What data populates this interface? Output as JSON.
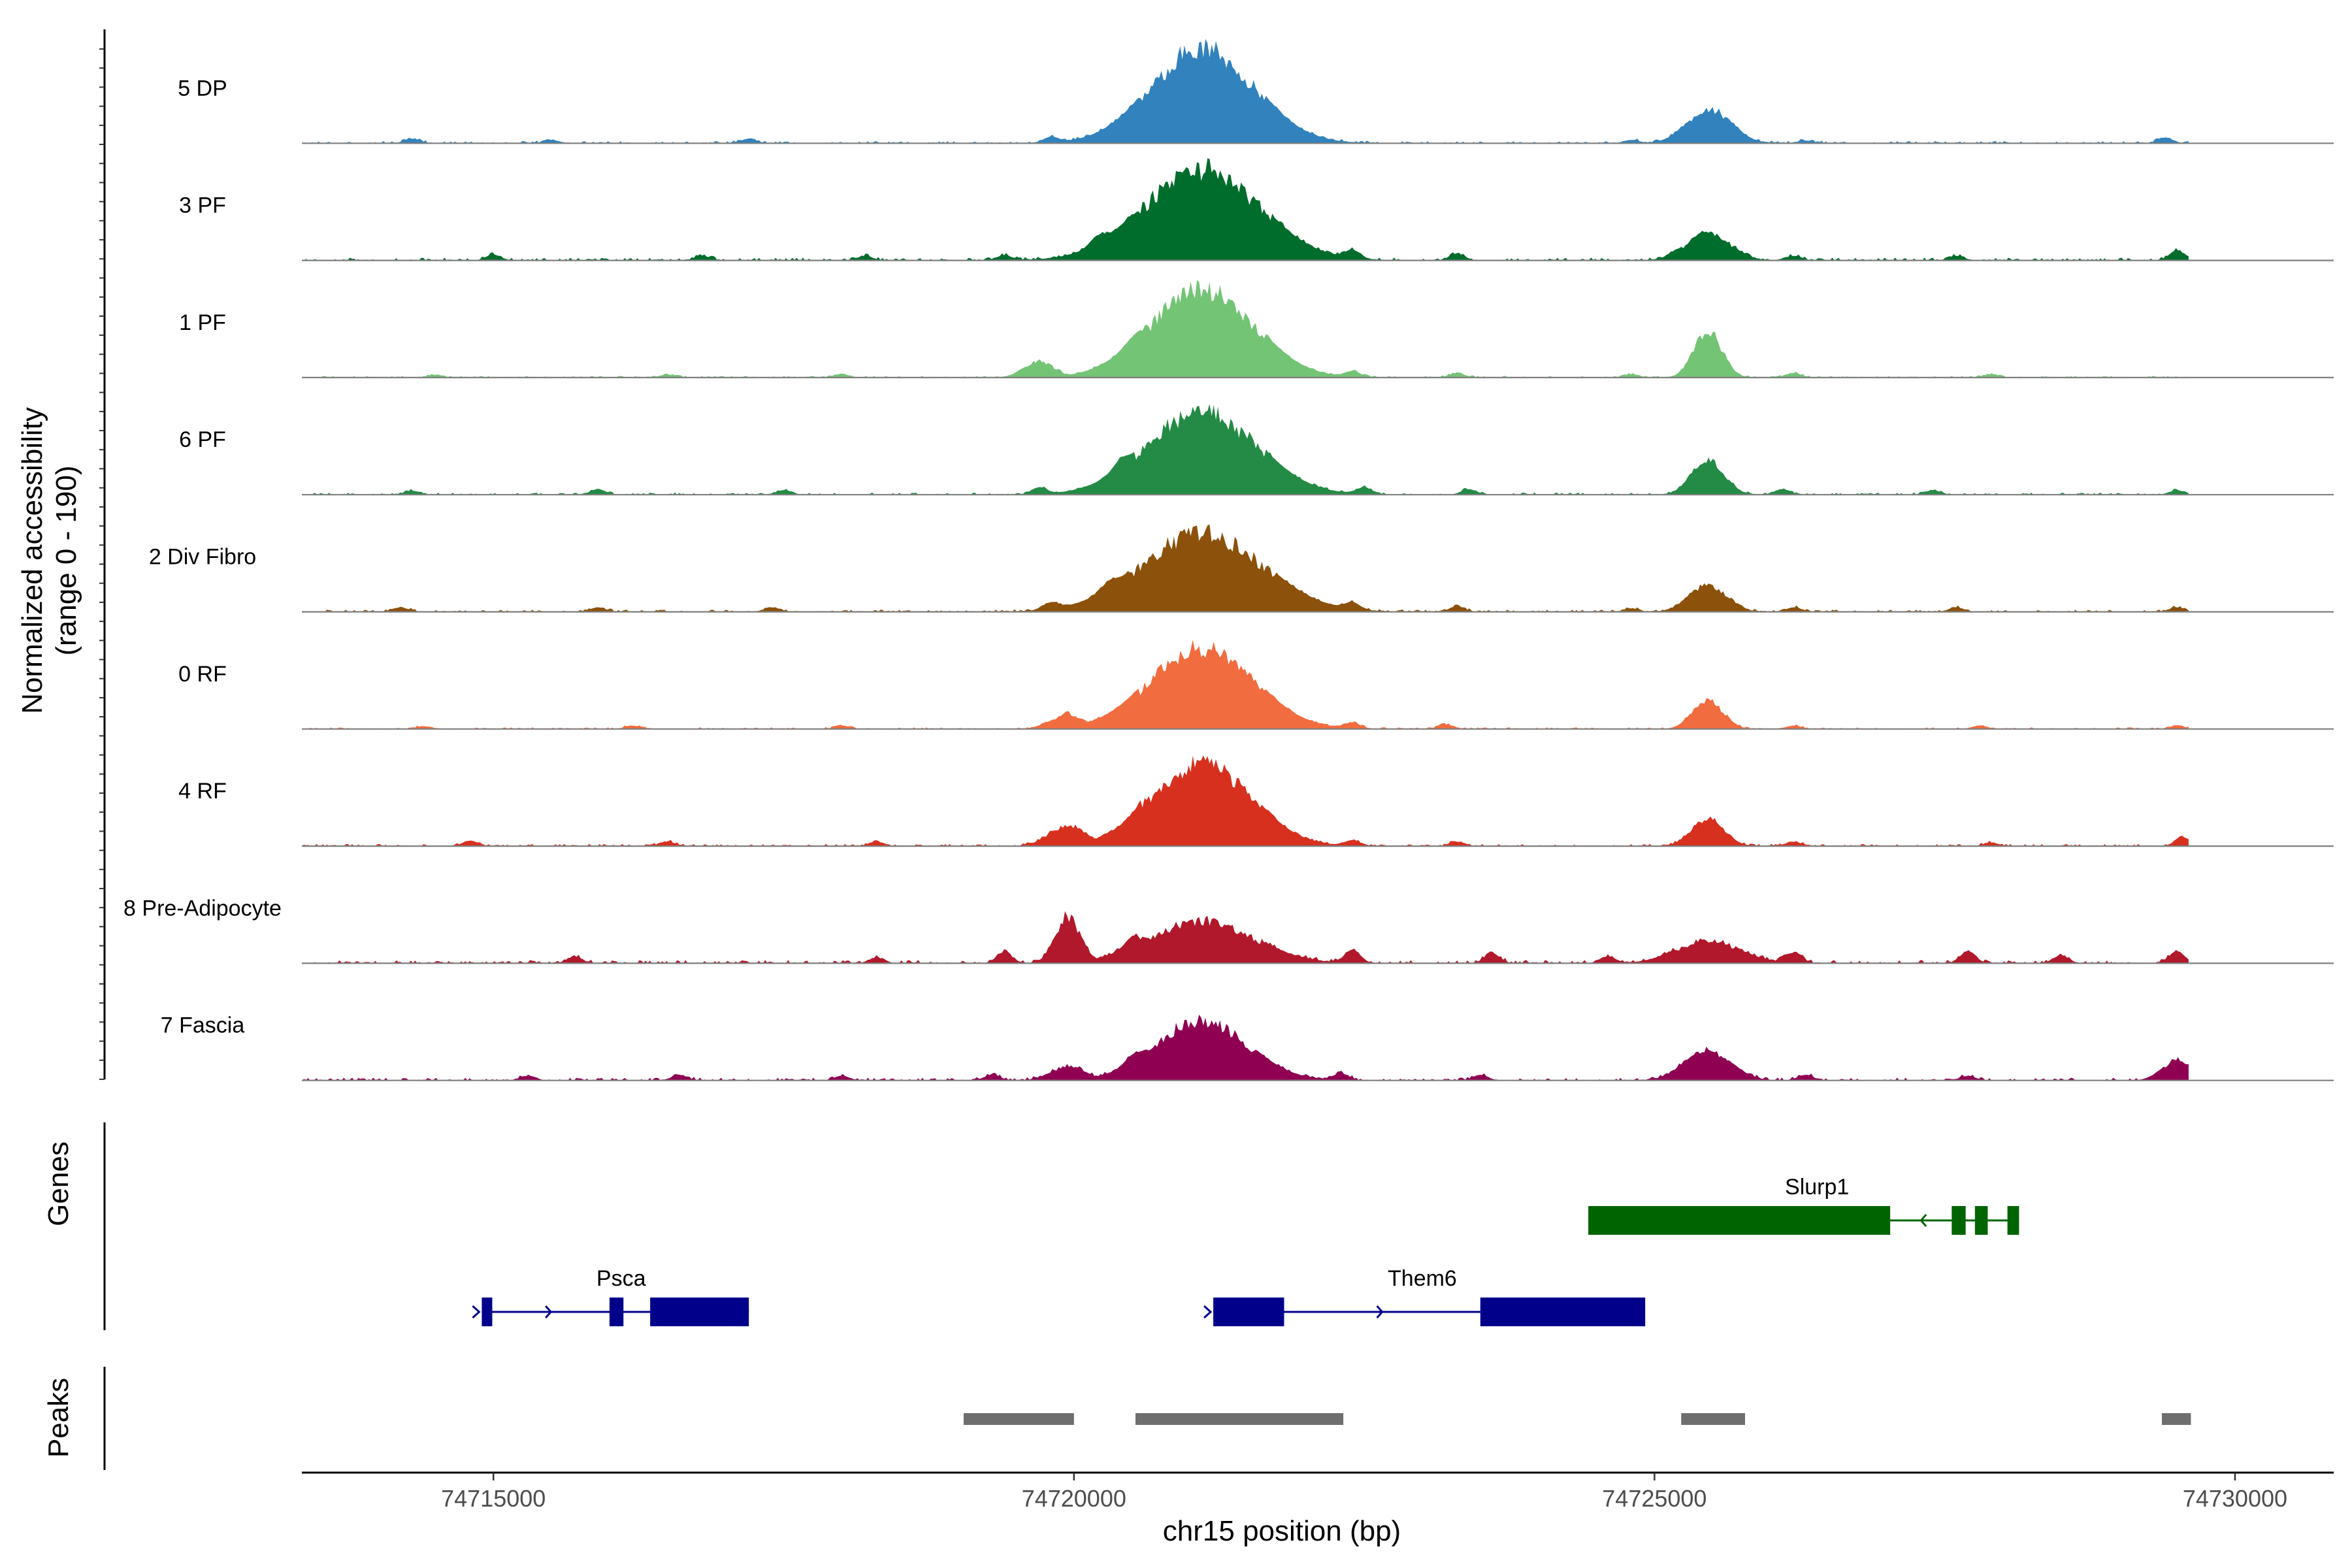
{
  "chart_data": {
    "type": "coverage-track",
    "chromosome": "chr15",
    "xlabel": "chr15 position (bp)",
    "ylabel_line1": "Normalized accessibility",
    "ylabel_line2": "(range 0 - 190)",
    "y_range": [
      0,
      190
    ],
    "x_range": [
      74713350,
      74730850
    ],
    "data_x_range": [
      74713350,
      74729600
    ],
    "x_ticks": [
      74715000,
      74720000,
      74725000,
      74730000
    ],
    "x_tick_labels": [
      "74715000",
      "74720000",
      "74725000",
      "74730000"
    ],
    "tracks": [
      {
        "name": "5 DP",
        "color": "#3182bd",
        "peaks": [
          [
            74721110,
            190,
            900
          ],
          [
            74725470,
            70,
            380
          ]
        ],
        "bumps": [
          [
            74714300,
            8
          ],
          [
            74715500,
            6
          ],
          [
            74717200,
            8
          ],
          [
            74719800,
            10
          ],
          [
            74720900,
            7
          ],
          [
            74724800,
            6
          ],
          [
            74726300,
            5
          ],
          [
            74729400,
            10
          ]
        ],
        "noise": 4
      },
      {
        "name": "3 PF",
        "color": "#006d2c",
        "peaks": [
          [
            74721100,
            185,
            1000
          ],
          [
            74725460,
            55,
            380
          ]
        ],
        "bumps": [
          [
            74715000,
            10
          ],
          [
            74716800,
            8
          ],
          [
            74718200,
            8
          ],
          [
            74719400,
            9
          ],
          [
            74720200,
            14
          ],
          [
            74722400,
            15
          ],
          [
            74723300,
            12
          ],
          [
            74726200,
            8
          ],
          [
            74727600,
            8
          ],
          [
            74729500,
            18
          ]
        ],
        "noise": 5
      },
      {
        "name": "1 PF",
        "color": "#74c476",
        "peaks": [
          [
            74721100,
            180,
            900
          ],
          [
            74725460,
            95,
            240
          ],
          [
            74719700,
            34,
            260
          ]
        ],
        "bumps": [
          [
            74714500,
            5
          ],
          [
            74716500,
            5
          ],
          [
            74718000,
            6
          ],
          [
            74720500,
            6
          ],
          [
            74722400,
            10
          ],
          [
            74723300,
            8
          ],
          [
            74724800,
            6
          ],
          [
            74726200,
            8
          ],
          [
            74727900,
            6
          ]
        ],
        "noise": 3
      },
      {
        "name": "6 PF",
        "color": "#238b45",
        "peaks": [
          [
            74721100,
            170,
            950
          ],
          [
            74725460,
            70,
            280
          ]
        ],
        "bumps": [
          [
            74714300,
            7
          ],
          [
            74715900,
            10
          ],
          [
            74717500,
            8
          ],
          [
            74719700,
            12
          ],
          [
            74720400,
            14
          ],
          [
            74722500,
            12
          ],
          [
            74723400,
            10
          ],
          [
            74726100,
            10
          ],
          [
            74727400,
            8
          ],
          [
            74729500,
            8
          ]
        ],
        "noise": 4
      },
      {
        "name": "2 Div Fibro",
        "color": "#8c510a",
        "peaks": [
          [
            74721100,
            160,
            1050
          ],
          [
            74725460,
            55,
            320
          ]
        ],
        "bumps": [
          [
            74714200,
            8
          ],
          [
            74715900,
            8
          ],
          [
            74717400,
            8
          ],
          [
            74719800,
            12
          ],
          [
            74720300,
            12
          ],
          [
            74722400,
            12
          ],
          [
            74723300,
            10
          ],
          [
            74724800,
            6
          ],
          [
            74726200,
            8
          ],
          [
            74727600,
            8
          ],
          [
            74729500,
            8
          ]
        ],
        "noise": 4
      },
      {
        "name": "0 RF",
        "color": "#f16c3e",
        "peaks": [
          [
            74721100,
            165,
            900
          ],
          [
            74725460,
            60,
            260
          ],
          [
            74719950,
            30,
            300
          ]
        ],
        "bumps": [
          [
            74714400,
            5
          ],
          [
            74716200,
            6
          ],
          [
            74718000,
            6
          ],
          [
            74722400,
            10
          ],
          [
            74723200,
            8
          ],
          [
            74726200,
            6
          ],
          [
            74727800,
            6
          ],
          [
            74729500,
            6
          ]
        ],
        "noise": 3
      },
      {
        "name": "4 RF",
        "color": "#d7301f",
        "peaks": [
          [
            74721100,
            170,
            850
          ],
          [
            74725460,
            55,
            280
          ],
          [
            74719950,
            42,
            320
          ]
        ],
        "bumps": [
          [
            74714800,
            10
          ],
          [
            74716500,
            8
          ],
          [
            74718300,
            8
          ],
          [
            74720600,
            8
          ],
          [
            74722400,
            10
          ],
          [
            74723300,
            8
          ],
          [
            74726200,
            8
          ],
          [
            74727900,
            6
          ],
          [
            74729550,
            16
          ]
        ],
        "noise": 4
      },
      {
        "name": "8 Pre-Adipocyte",
        "color": "#b2182b",
        "peaks": [
          [
            74719950,
            95,
            220
          ],
          [
            74721100,
            85,
            900
          ],
          [
            74725460,
            45,
            550
          ]
        ],
        "bumps": [
          [
            74715700,
            12
          ],
          [
            74718300,
            10
          ],
          [
            74719400,
            20
          ],
          [
            74720500,
            16
          ],
          [
            74722400,
            24
          ],
          [
            74723600,
            18
          ],
          [
            74724600,
            12
          ],
          [
            74726200,
            18
          ],
          [
            74727700,
            22
          ],
          [
            74728500,
            14
          ],
          [
            74729500,
            22
          ]
        ],
        "noise": 6
      },
      {
        "name": "7 Fascia",
        "color": "#8f0052",
        "peaks": [
          [
            74721100,
            120,
            800
          ],
          [
            74725460,
            60,
            400
          ],
          [
            74719950,
            28,
            300
          ],
          [
            74729500,
            40,
            260
          ]
        ],
        "bumps": [
          [
            74715300,
            8
          ],
          [
            74716600,
            10
          ],
          [
            74718000,
            8
          ],
          [
            74719300,
            10
          ],
          [
            74720500,
            12
          ],
          [
            74722300,
            12
          ],
          [
            74723500,
            10
          ],
          [
            74726300,
            10
          ],
          [
            74727700,
            8
          ]
        ],
        "noise": 5
      }
    ],
    "genes": [
      {
        "name": "Psca",
        "strand": "+",
        "row": 2,
        "start": 74714900,
        "end": 74717200,
        "exons": [
          [
            74714900,
            74714990
          ],
          [
            74716000,
            74716120
          ],
          [
            74716350,
            74717200
          ]
        ]
      },
      {
        "name": "Them6",
        "strand": "+",
        "row": 2,
        "start": 74721200,
        "end": 74724920,
        "exons": [
          [
            74721200,
            74721810
          ],
          [
            74723500,
            74724920
          ]
        ]
      },
      {
        "name": "Slurp1",
        "strand": "-",
        "row": 1,
        "start": 74724430,
        "end": 74728140,
        "exons": [
          [
            74724430,
            74727030
          ],
          [
            74727560,
            74727680
          ],
          [
            74727760,
            74727870
          ],
          [
            74728040,
            74728140
          ]
        ]
      }
    ],
    "peaks": [
      [
        74719050,
        74720000
      ],
      [
        74720530,
        74722320
      ],
      [
        74725230,
        74725780
      ],
      [
        74729370,
        74729620
      ]
    ],
    "track_labels": [
      "Genes",
      "Peaks"
    ]
  }
}
